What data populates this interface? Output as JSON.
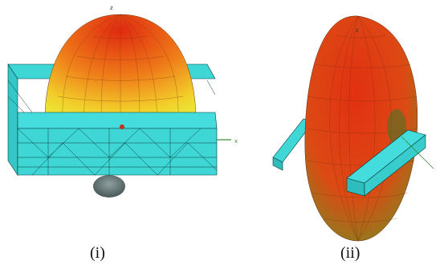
{
  "panels": [
    {
      "caption": "(i)",
      "axis_label": "z",
      "axis_label_side": "x"
    },
    {
      "caption": "(ii)",
      "axis_label": "z"
    }
  ],
  "colors": {
    "pattern_top": "#e23a12",
    "pattern_mid": "#f0a020",
    "pattern_low": "#f2e43a",
    "substrate": "#3fd6d6",
    "mesh_line": "#0b3a3a",
    "feed": "#3c8f3c"
  }
}
